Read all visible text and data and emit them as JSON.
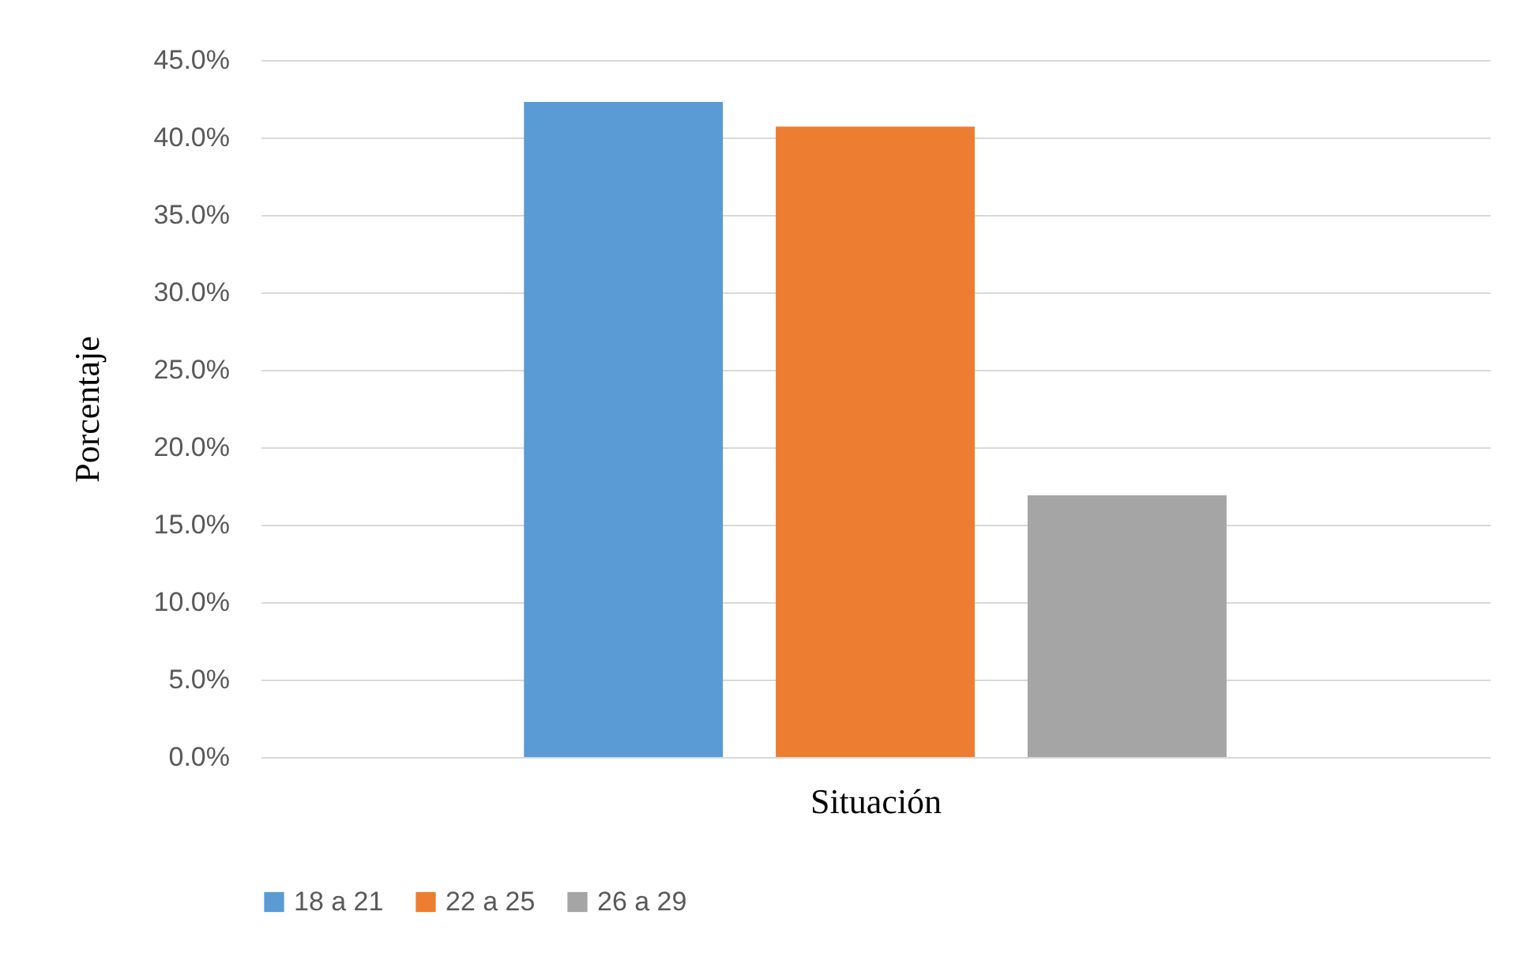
{
  "chart_data": {
    "type": "bar",
    "xlabel": "Situación",
    "ylabel": "Porcentaje",
    "categories": [
      null
    ],
    "series": [
      {
        "name": "18 a 21",
        "color": "#5b9bd5",
        "values": [
          42.3
        ]
      },
      {
        "name": "22 a 25",
        "color": "#ed7d31",
        "values": [
          40.7
        ]
      },
      {
        "name": "26 a 29",
        "color": "#a5a5a5",
        "values": [
          16.9
        ]
      }
    ],
    "ylim": [
      0,
      45
    ],
    "yticks": [
      {
        "value": 0,
        "label": "0.0%"
      },
      {
        "value": 5,
        "label": "5.0%"
      },
      {
        "value": 10,
        "label": "10.0%"
      },
      {
        "value": 15,
        "label": "15.0%"
      },
      {
        "value": 20,
        "label": "20.0%"
      },
      {
        "value": 25,
        "label": "25.0%"
      },
      {
        "value": 30,
        "label": "30.0%"
      },
      {
        "value": 35,
        "label": "35.0%"
      },
      {
        "value": 40,
        "label": "40.0%"
      },
      {
        "value": 45,
        "label": "45.0%"
      }
    ],
    "grid": "y",
    "legend": "bottom"
  }
}
